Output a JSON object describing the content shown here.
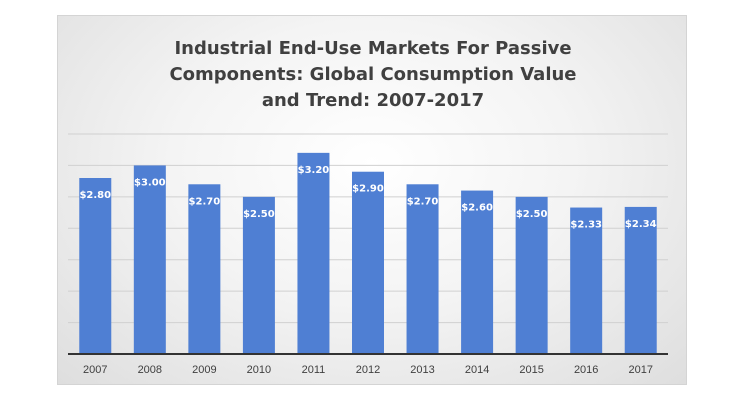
{
  "chart_data": {
    "type": "bar",
    "title": "Industrial End-Use Markets For Passive Components: Global Consumption Value and Trend: 2007-2017",
    "categories": [
      "2007",
      "2008",
      "2009",
      "2010",
      "2011",
      "2012",
      "2013",
      "2014",
      "2015",
      "2016",
      "2017"
    ],
    "values": [
      2.8,
      3.0,
      2.7,
      2.5,
      3.2,
      2.9,
      2.7,
      2.6,
      2.5,
      2.33,
      2.34
    ],
    "data_labels": [
      "$2.80",
      "$3.00",
      "$2.70",
      "$2.50",
      "$3.20",
      "$2.90",
      "$2.70",
      "$2.60",
      "$2.50",
      "$2.33",
      "$2.34"
    ],
    "xlabel": "",
    "ylabel": "",
    "ylim": [
      0,
      3.5
    ],
    "grid": true,
    "legend": "none",
    "bar_color": "#4f7fd3"
  }
}
